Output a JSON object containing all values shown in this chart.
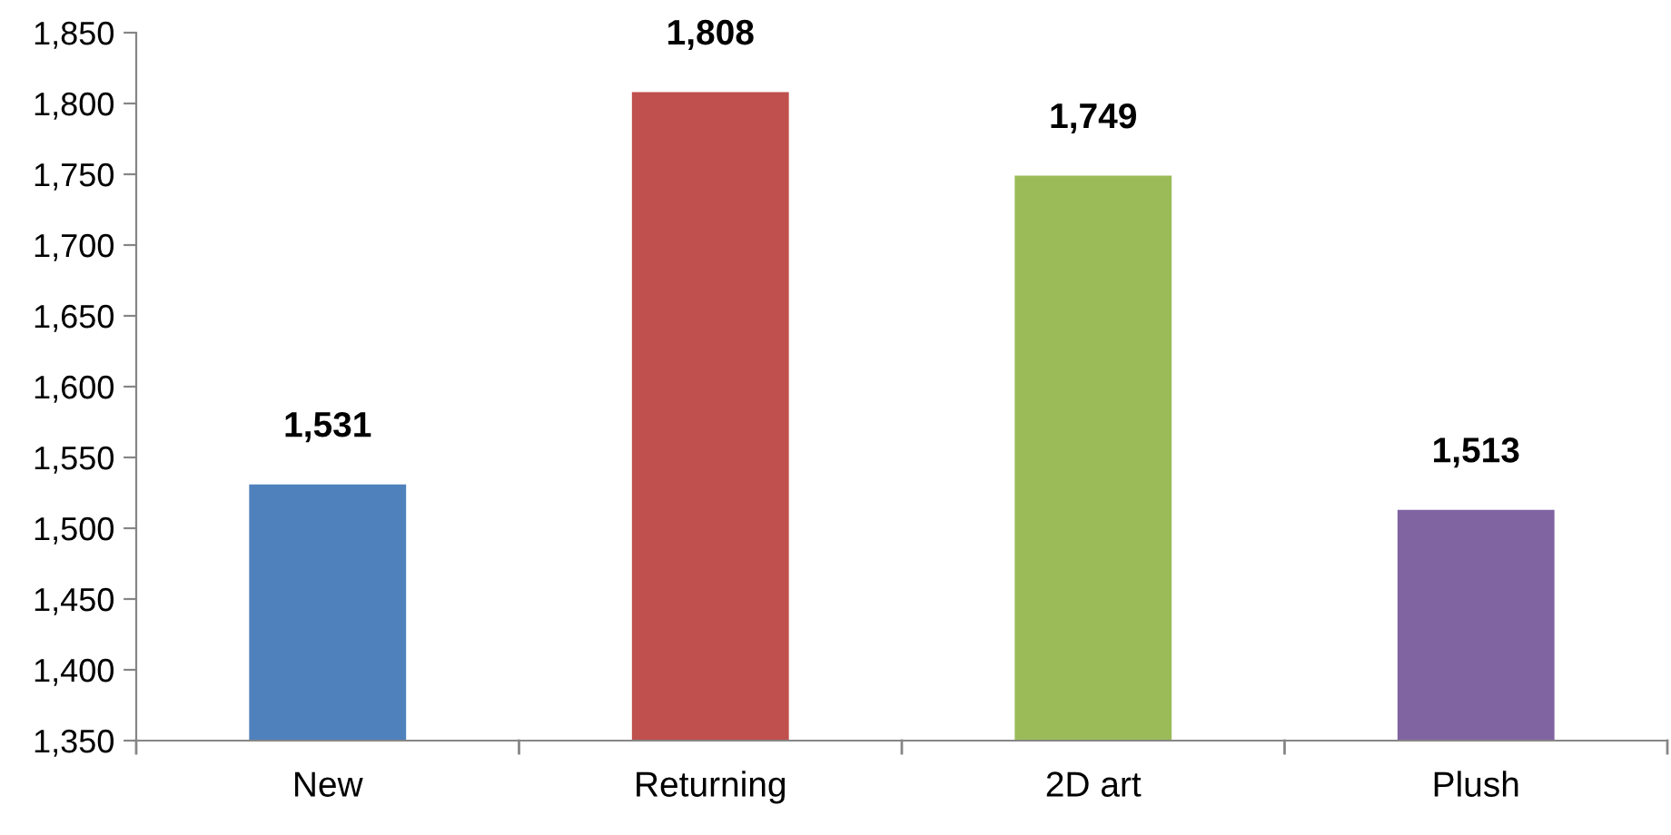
{
  "chart_data": {
    "type": "bar",
    "categories": [
      "New",
      "Returning",
      "2D art",
      "Plush"
    ],
    "values": [
      1531,
      1808,
      1749,
      1513
    ],
    "colors": [
      "#4f81bd",
      "#c0504d",
      "#9bbb59",
      "#8064a2"
    ],
    "value_labels": [
      "1,531",
      "1,808",
      "1,749",
      "1,513"
    ],
    "ylim": [
      1350,
      1850
    ],
    "yticks": [
      {
        "value": 1350,
        "label": "1,350"
      },
      {
        "value": 1400,
        "label": "1,400"
      },
      {
        "value": 1450,
        "label": "1,450"
      },
      {
        "value": 1500,
        "label": "1,500"
      },
      {
        "value": 1550,
        "label": "1,550"
      },
      {
        "value": 1600,
        "label": "1,600"
      },
      {
        "value": 1650,
        "label": "1,650"
      },
      {
        "value": 1700,
        "label": "1,700"
      },
      {
        "value": 1750,
        "label": "1,750"
      },
      {
        "value": 1800,
        "label": "1,800"
      },
      {
        "value": 1850,
        "label": "1,850"
      }
    ],
    "grid": false,
    "legend": false
  }
}
